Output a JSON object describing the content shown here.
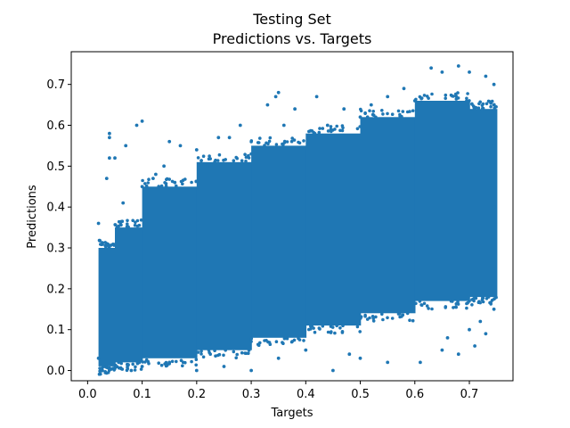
{
  "chart_data": {
    "type": "scatter",
    "title": "Testing Set",
    "subtitle": "Predictions vs. Targets",
    "xlabel": "Targets",
    "ylabel": "Predictions",
    "xlim": [
      -0.03,
      0.78
    ],
    "ylim": [
      -0.025,
      0.78
    ],
    "x_ticks": [
      {
        "value": 0.0,
        "label": "0.0"
      },
      {
        "value": 0.1,
        "label": "0.1"
      },
      {
        "value": 0.2,
        "label": "0.2"
      },
      {
        "value": 0.3,
        "label": "0.3"
      },
      {
        "value": 0.4,
        "label": "0.4"
      },
      {
        "value": 0.5,
        "label": "0.5"
      },
      {
        "value": 0.6,
        "label": "0.6"
      },
      {
        "value": 0.7,
        "label": "0.7"
      }
    ],
    "y_ticks": [
      {
        "value": 0.0,
        "label": "0.0"
      },
      {
        "value": 0.1,
        "label": "0.1"
      },
      {
        "value": 0.2,
        "label": "0.2"
      },
      {
        "value": 0.3,
        "label": "0.3"
      },
      {
        "value": 0.4,
        "label": "0.4"
      },
      {
        "value": 0.5,
        "label": "0.5"
      },
      {
        "value": 0.6,
        "label": "0.6"
      },
      {
        "value": 0.7,
        "label": "0.7"
      }
    ],
    "grid": false,
    "legend": "none",
    "marker_color": "#1f77b4",
    "series": [
      {
        "points": [
          [
            0.02,
            0.36
          ],
          [
            0.04,
            0.58
          ],
          [
            0.04,
            0.57
          ],
          [
            0.04,
            0.52
          ],
          [
            0.035,
            0.47
          ],
          [
            0.05,
            0.52
          ],
          [
            0.065,
            0.41
          ],
          [
            0.07,
            0.55
          ],
          [
            0.09,
            0.6
          ],
          [
            0.1,
            0.61
          ],
          [
            0.125,
            0.48
          ],
          [
            0.15,
            0.56
          ],
          [
            0.17,
            0.55
          ],
          [
            0.2,
            0.54
          ],
          [
            0.24,
            0.57
          ],
          [
            0.26,
            0.57
          ],
          [
            0.28,
            0.6
          ],
          [
            0.33,
            0.65
          ],
          [
            0.345,
            0.67
          ],
          [
            0.35,
            0.68
          ],
          [
            0.38,
            0.64
          ],
          [
            0.42,
            0.67
          ],
          [
            0.47,
            0.64
          ],
          [
            0.52,
            0.65
          ],
          [
            0.55,
            0.67
          ],
          [
            0.58,
            0.69
          ],
          [
            0.63,
            0.74
          ],
          [
            0.65,
            0.73
          ],
          [
            0.68,
            0.745
          ],
          [
            0.7,
            0.73
          ],
          [
            0.73,
            0.72
          ],
          [
            0.745,
            0.7
          ],
          [
            0.02,
            0.03
          ],
          [
            0.03,
            0.01
          ],
          [
            0.05,
            0.005
          ],
          [
            0.08,
            0.0
          ],
          [
            0.1,
            0.01
          ],
          [
            0.15,
            0.02
          ],
          [
            0.2,
            0.0
          ],
          [
            0.25,
            0.01
          ],
          [
            0.3,
            0.0
          ],
          [
            0.35,
            0.03
          ],
          [
            0.4,
            0.05
          ],
          [
            0.45,
            0.0
          ],
          [
            0.48,
            0.04
          ],
          [
            0.5,
            0.03
          ],
          [
            0.55,
            0.02
          ],
          [
            0.61,
            0.02
          ],
          [
            0.65,
            0.05
          ],
          [
            0.68,
            0.04
          ],
          [
            0.71,
            0.06
          ],
          [
            0.73,
            0.09
          ],
          [
            0.745,
            0.15
          ],
          [
            0.745,
            0.25
          ],
          [
            0.745,
            0.4
          ],
          [
            0.745,
            0.55
          ],
          [
            0.745,
            0.65
          ],
          [
            0.72,
            0.12
          ],
          [
            0.7,
            0.1
          ],
          [
            0.66,
            0.08
          ],
          [
            0.1,
            0.45
          ],
          [
            0.12,
            0.47
          ],
          [
            0.14,
            0.5
          ],
          [
            0.16,
            0.46
          ],
          [
            0.22,
            0.5
          ],
          [
            0.3,
            0.53
          ],
          [
            0.36,
            0.6
          ],
          [
            0.44,
            0.6
          ],
          [
            0.5,
            0.62
          ],
          [
            0.6,
            0.66
          ]
        ]
      }
    ],
    "density_bands": [
      {
        "x_from": 0.02,
        "x_to": 0.05,
        "y_from": 0.01,
        "y_to": 0.3
      },
      {
        "x_from": 0.05,
        "x_to": 0.1,
        "y_from": 0.02,
        "y_to": 0.35
      },
      {
        "x_from": 0.1,
        "x_to": 0.2,
        "y_from": 0.03,
        "y_to": 0.45
      },
      {
        "x_from": 0.2,
        "x_to": 0.3,
        "y_from": 0.05,
        "y_to": 0.51
      },
      {
        "x_from": 0.3,
        "x_to": 0.4,
        "y_from": 0.08,
        "y_to": 0.55
      },
      {
        "x_from": 0.4,
        "x_to": 0.5,
        "y_from": 0.11,
        "y_to": 0.58
      },
      {
        "x_from": 0.5,
        "x_to": 0.6,
        "y_from": 0.14,
        "y_to": 0.62
      },
      {
        "x_from": 0.6,
        "x_to": 0.7,
        "y_from": 0.17,
        "y_to": 0.66
      },
      {
        "x_from": 0.7,
        "x_to": 0.75,
        "y_from": 0.18,
        "y_to": 0.64
      }
    ]
  }
}
